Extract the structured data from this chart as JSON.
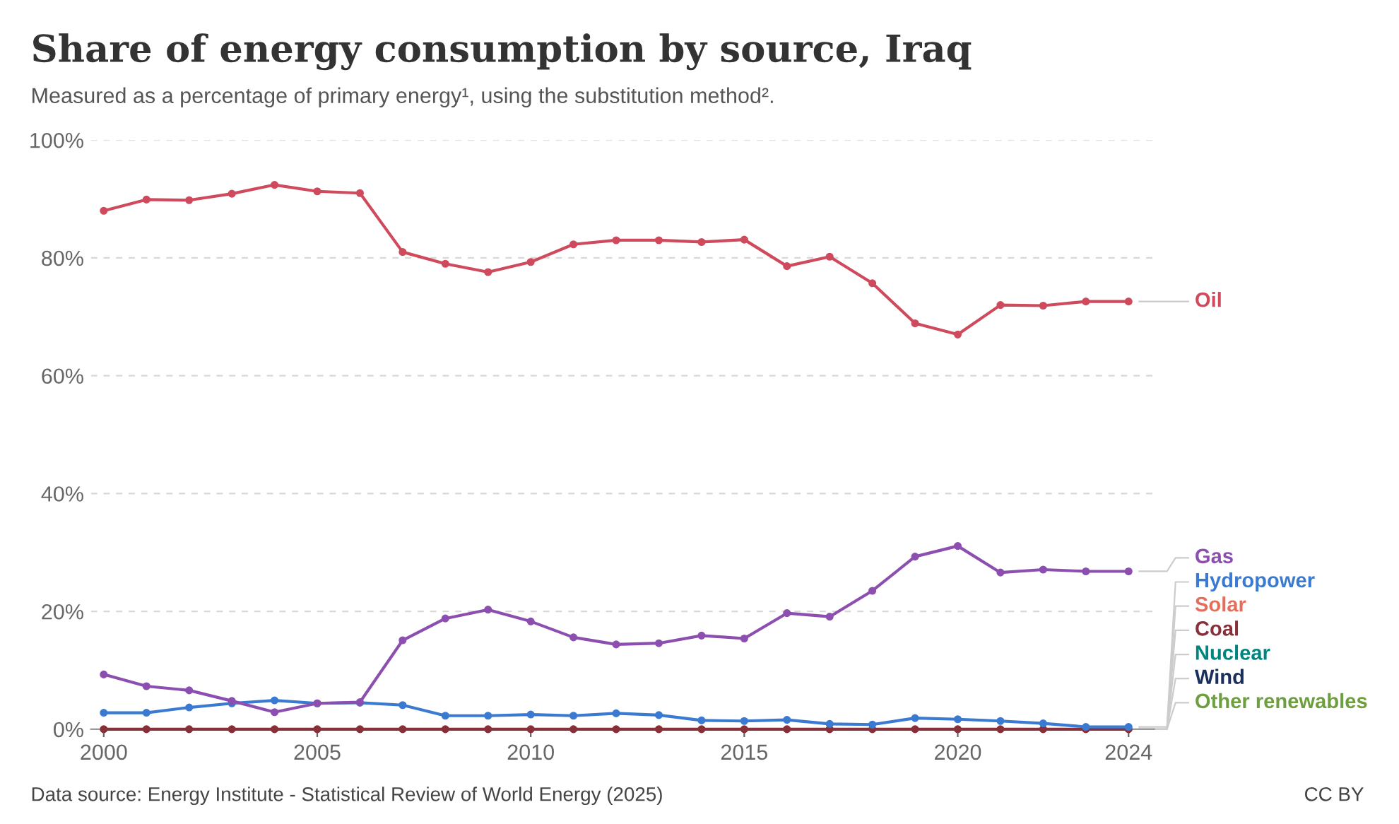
{
  "chart_data": {
    "type": "line",
    "title": "Share of energy consumption by source, Iraq",
    "subtitle": "Measured as a percentage of primary energy¹, using the substitution method².",
    "x": [
      2000,
      2001,
      2002,
      2003,
      2004,
      2005,
      2006,
      2007,
      2008,
      2009,
      2010,
      2011,
      2012,
      2013,
      2014,
      2015,
      2016,
      2017,
      2018,
      2019,
      2020,
      2021,
      2022,
      2023,
      2024
    ],
    "series": [
      {
        "name": "Oil",
        "color": "#ce4a5c",
        "values": [
          88.0,
          89.9,
          89.8,
          90.9,
          92.4,
          91.3,
          91.0,
          81.0,
          79.0,
          77.6,
          79.3,
          82.3,
          83.0,
          83.0,
          82.7,
          83.1,
          78.6,
          80.2,
          75.7,
          68.9,
          67.0,
          72.0,
          71.9,
          72.6,
          72.6
        ]
      },
      {
        "name": "Gas",
        "color": "#8c4fb0",
        "values": [
          9.3,
          7.3,
          6.6,
          4.8,
          2.9,
          4.4,
          4.6,
          15.1,
          18.8,
          20.3,
          18.3,
          15.6,
          14.4,
          14.6,
          15.9,
          15.4,
          19.7,
          19.1,
          23.5,
          29.3,
          31.1,
          26.6,
          27.1,
          26.8,
          26.8
        ]
      },
      {
        "name": "Hydropower",
        "color": "#3a7ad1",
        "values": [
          2.8,
          2.8,
          3.7,
          4.4,
          4.9,
          4.4,
          4.5,
          4.1,
          2.3,
          2.3,
          2.5,
          2.3,
          2.7,
          2.4,
          1.5,
          1.4,
          1.6,
          0.9,
          0.8,
          1.9,
          1.7,
          1.4,
          1.0,
          0.4,
          0.4
        ]
      },
      {
        "name": "Solar",
        "color": "#e56e5a",
        "values": [
          null,
          null,
          null,
          null,
          null,
          null,
          null,
          null,
          null,
          null,
          null,
          null,
          null,
          null,
          null,
          null,
          null,
          null,
          null,
          null,
          null,
          null,
          null,
          null,
          null
        ]
      },
      {
        "name": "Coal",
        "color": "#883039",
        "values": [
          0,
          0,
          0,
          0,
          0,
          0,
          0,
          0,
          0,
          0,
          0,
          0,
          0,
          0,
          0,
          0,
          0,
          0,
          0,
          0,
          0,
          0,
          0,
          0,
          0
        ]
      },
      {
        "name": "Nuclear",
        "color": "#00847e",
        "values": [
          null,
          null,
          null,
          null,
          null,
          null,
          null,
          null,
          null,
          null,
          null,
          null,
          null,
          null,
          null,
          null,
          null,
          null,
          null,
          null,
          null,
          null,
          null,
          null,
          null
        ]
      },
      {
        "name": "Wind",
        "color": "#1a2f5c",
        "values": [
          null,
          null,
          null,
          null,
          null,
          null,
          null,
          null,
          null,
          null,
          null,
          null,
          null,
          null,
          null,
          null,
          null,
          null,
          null,
          null,
          null,
          null,
          null,
          null,
          null
        ]
      },
      {
        "name": "Other renewables",
        "color": "#6d9e3f",
        "values": [
          null,
          null,
          null,
          null,
          null,
          null,
          null,
          null,
          null,
          null,
          null,
          null,
          null,
          null,
          null,
          null,
          null,
          null,
          null,
          null,
          null,
          null,
          null,
          null,
          null
        ]
      }
    ],
    "xlim": [
      1999.7,
      2024.6
    ],
    "xticks": [
      2000,
      2005,
      2010,
      2015,
      2020,
      2024
    ],
    "ylim": [
      0,
      100
    ],
    "yticks": [
      {
        "value": 0,
        "label": "0%"
      },
      {
        "value": 20,
        "label": "20%"
      },
      {
        "value": 40,
        "label": "40%"
      },
      {
        "value": 60,
        "label": "60%"
      },
      {
        "value": 80,
        "label": "80%"
      },
      {
        "value": 100,
        "label": "100%"
      }
    ],
    "grid": "y",
    "legend": "right",
    "marker": "circle",
    "line_style": "solid",
    "annotations": [
      "Data source: Energy Institute - Statistical Review of World Energy (2025)",
      "CC BY"
    ]
  }
}
